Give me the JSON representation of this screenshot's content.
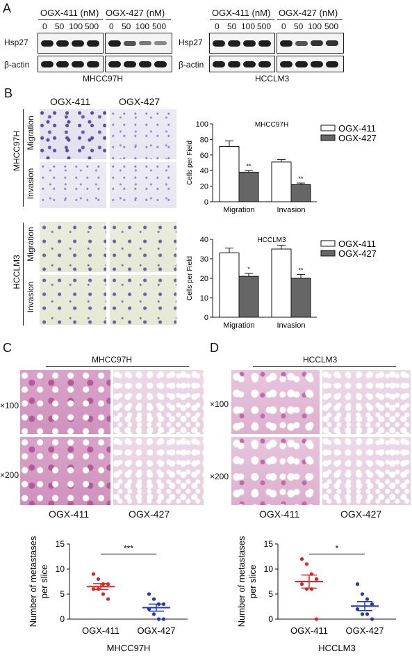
{
  "panels": {
    "A": "A",
    "B": "B",
    "C": "C",
    "D": "D"
  },
  "panel_a": {
    "left": {
      "groups": [
        "OGX-411 (nM)",
        "OGX-427 (nM)"
      ],
      "doses": [
        "0",
        "50",
        "100",
        "500"
      ],
      "rows": [
        "Hsp27",
        "β-actin"
      ],
      "cell_line": "MHCC97H"
    },
    "right": {
      "groups": [
        "OGX-411 (nM)",
        "OGX-427 (nM)"
      ],
      "doses": [
        "0",
        "50",
        "100",
        "500"
      ],
      "rows": [
        "Hsp27",
        "β-actin"
      ],
      "cell_line": "HCCLM3"
    }
  },
  "panel_b": {
    "col_headers": [
      "OGX-411",
      "OGX-427"
    ],
    "block1": {
      "line": "MHCC97H",
      "rows": [
        "Migration",
        "Invasion"
      ]
    },
    "block2": {
      "line": "HCCLM3",
      "rows": [
        "Migration",
        "Invasion"
      ]
    }
  },
  "panel_c": {
    "title": "MHCC97H",
    "mags": [
      "×100",
      "×200"
    ],
    "cols": [
      "OGX-411",
      "OGX-427"
    ]
  },
  "panel_d": {
    "title": "HCCLM3",
    "mags": [
      "×100",
      "×200"
    ],
    "cols": [
      "OGX-411",
      "OGX-427"
    ]
  },
  "colors": {
    "red": "#e8201c",
    "blue": "#1f35c8",
    "gray_bar": "#666666"
  },
  "chart_data": [
    {
      "type": "bar",
      "title": "MHCC97H",
      "categories": [
        "Migration",
        "Invasion"
      ],
      "series": [
        {
          "name": "OGX-411",
          "values": [
            71,
            51
          ],
          "errors": [
            7,
            3
          ]
        },
        {
          "name": "OGX-427",
          "values": [
            38,
            22
          ],
          "errors": [
            2,
            2
          ]
        }
      ],
      "significance": [
        "**",
        "**"
      ],
      "ylabel": "Cells per Field",
      "ylim": [
        0,
        100
      ],
      "yticks": [
        0,
        20,
        40,
        60,
        80,
        100
      ],
      "legend": "top-right"
    },
    {
      "type": "bar",
      "title": "HCCLM3",
      "categories": [
        "Migration",
        "Invasion"
      ],
      "series": [
        {
          "name": "OGX-411",
          "values": [
            33,
            35
          ],
          "errors": [
            2.5,
            2
          ]
        },
        {
          "name": "OGX-427",
          "values": [
            21,
            20
          ],
          "errors": [
            1.5,
            2
          ]
        }
      ],
      "significance": [
        "*",
        "**"
      ],
      "ylabel": "Cells per Field",
      "ylim": [
        0,
        40
      ],
      "yticks": [
        0,
        10,
        20,
        30,
        40
      ],
      "legend": "top-right"
    },
    {
      "type": "scatter",
      "categories": [
        "OGX-411",
        "OGX-427"
      ],
      "groups": [
        {
          "name": "OGX-411",
          "points": [
            9,
            8,
            7,
            7,
            6,
            6,
            5,
            4
          ],
          "mean": 6.5,
          "sem": 0.6
        },
        {
          "name": "OGX-427",
          "points": [
            5,
            4,
            3,
            3,
            2,
            1,
            0,
            0
          ],
          "mean": 2.3,
          "sem": 0.7
        }
      ],
      "significance": "***",
      "ylabel": "Number of metastases per slice",
      "xlabel": "MHCC97H",
      "ylim": [
        0,
        15
      ],
      "yticks": [
        0,
        5,
        10,
        15
      ]
    },
    {
      "type": "scatter",
      "categories": [
        "OGX-411",
        "OGX-427"
      ],
      "groups": [
        {
          "name": "OGX-411",
          "points": [
            12,
            11,
            9,
            8,
            7,
            6,
            6,
            0
          ],
          "mean": 7.5,
          "sem": 1.3
        },
        {
          "name": "OGX-427",
          "points": [
            7,
            5,
            4,
            3,
            2,
            1,
            1,
            0
          ],
          "mean": 2.6,
          "sem": 0.9
        }
      ],
      "significance": "*",
      "ylabel": "Number of metastases per slice",
      "xlabel": "HCCLM3",
      "ylim": [
        0,
        15
      ],
      "yticks": [
        0,
        5,
        10,
        15
      ]
    }
  ]
}
